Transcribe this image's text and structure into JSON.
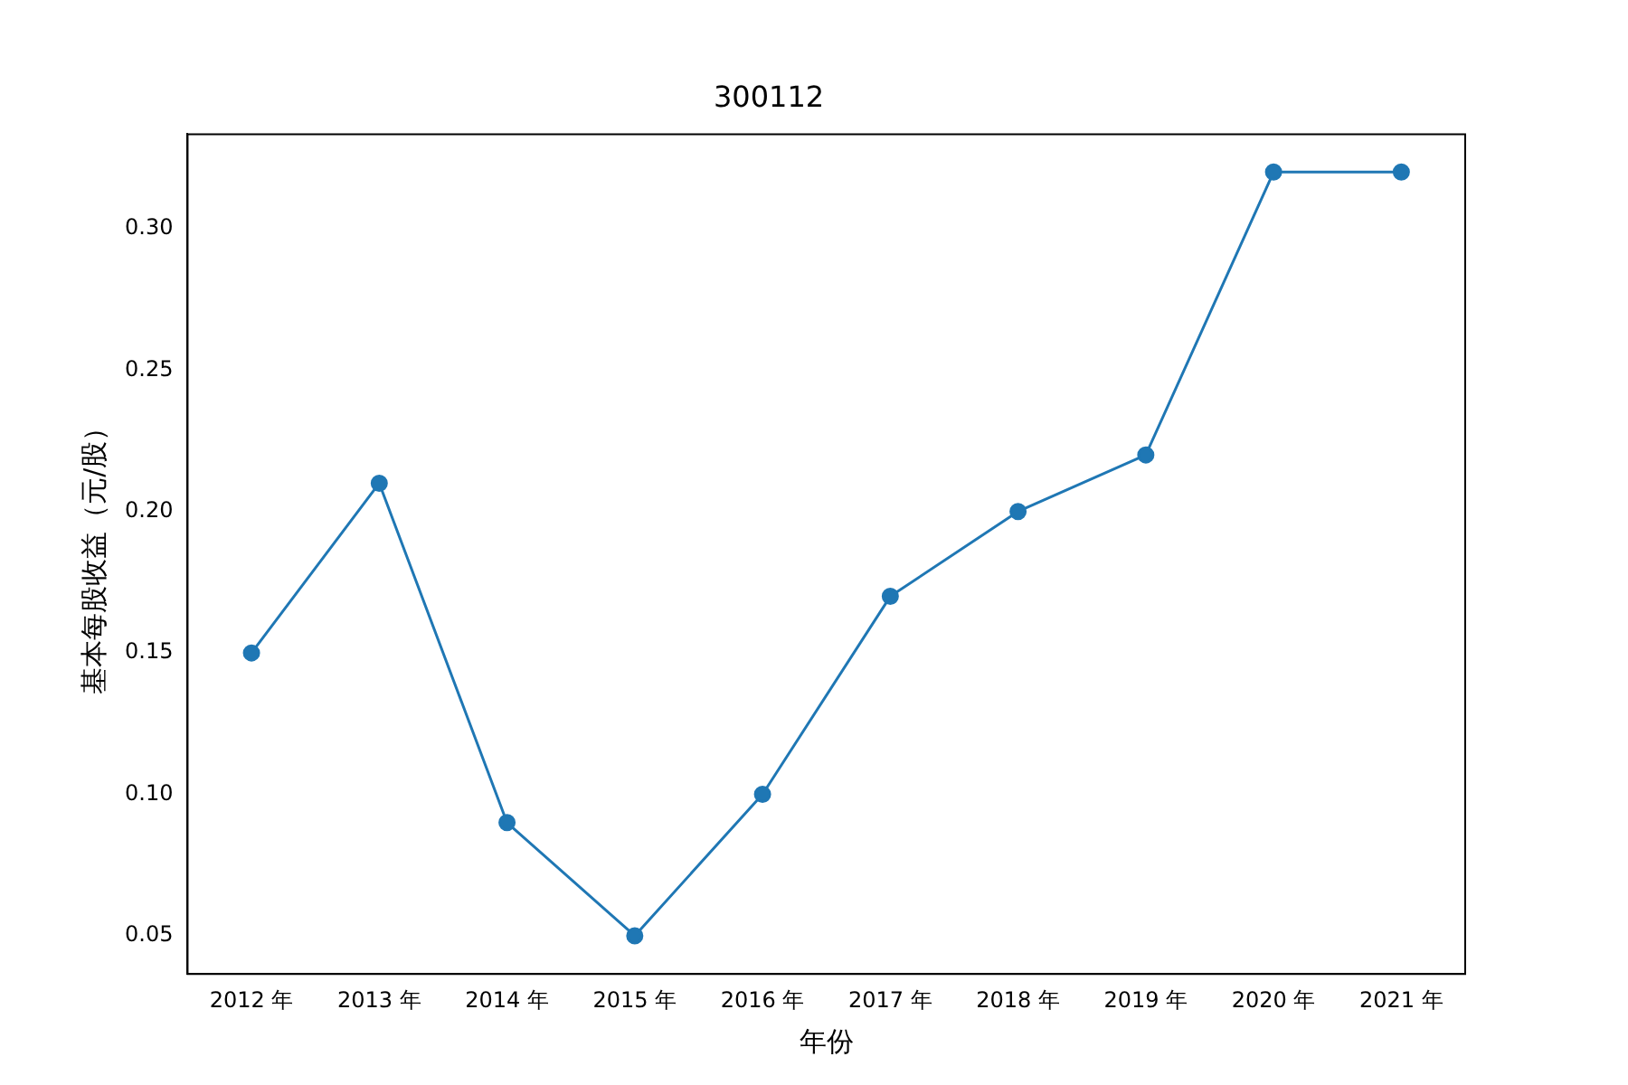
{
  "chart_data": {
    "type": "line",
    "title": "300112",
    "xlabel": "年份",
    "ylabel": "基本每股收益（元/股）",
    "categories": [
      "2012 年",
      "2013 年",
      "2014 年",
      "2015 年",
      "2016 年",
      "2017 年",
      "2018 年",
      "2019 年",
      "2020 年",
      "2021 年"
    ],
    "series": [
      {
        "color": "#1f77b4",
        "values": [
          0.15,
          0.21,
          0.09,
          0.05,
          0.1,
          0.17,
          0.2,
          0.22,
          0.32,
          0.32
        ]
      }
    ],
    "ylim": [
      0.0365,
      0.3334
    ],
    "yticks": [
      {
        "value": 0.05,
        "label": "0.05"
      },
      {
        "value": 0.1,
        "label": "0.10"
      },
      {
        "value": 0.15,
        "label": "0.15"
      },
      {
        "value": 0.2,
        "label": "0.20"
      },
      {
        "value": 0.25,
        "label": "0.25"
      },
      {
        "value": 0.3,
        "label": "0.30"
      }
    ],
    "grid": false,
    "legend": false,
    "marker": "circle",
    "line_style": "solid"
  }
}
